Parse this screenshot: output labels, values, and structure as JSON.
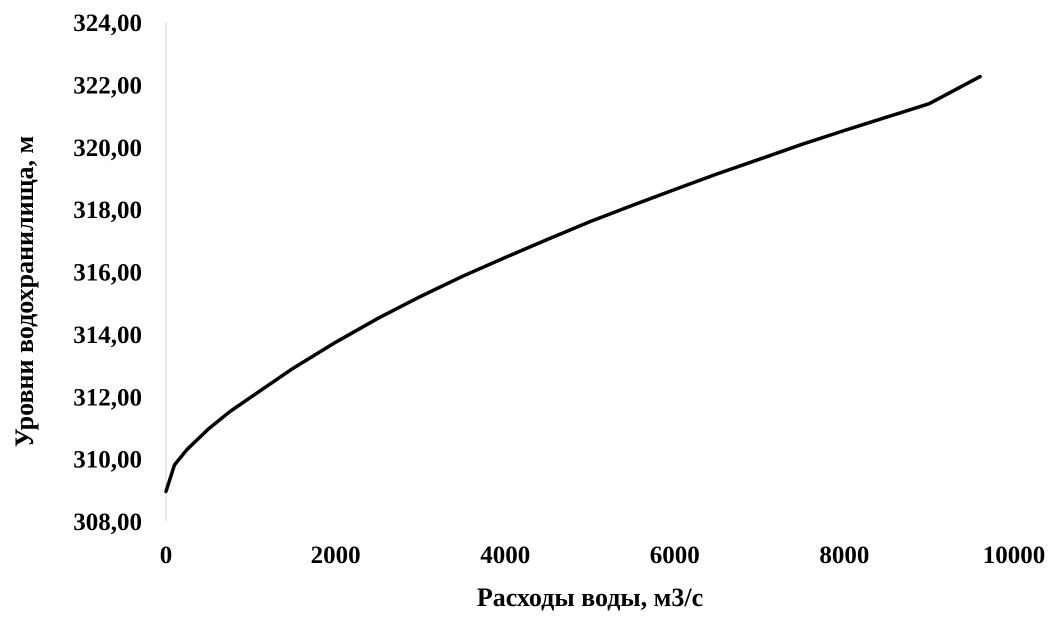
{
  "chart_data": {
    "type": "line",
    "title": "",
    "xlabel": "Расходы воды, м3/с",
    "ylabel": "Уровни водохранилища, м",
    "xlim": [
      0,
      10000
    ],
    "ylim": [
      308,
      324
    ],
    "x_ticks": [
      0,
      2000,
      4000,
      6000,
      8000,
      10000
    ],
    "x_tick_labels": [
      "0",
      "2000",
      "4000",
      "6000",
      "8000",
      "10000"
    ],
    "y_ticks": [
      308,
      310,
      312,
      314,
      316,
      318,
      320,
      322,
      324
    ],
    "y_tick_labels": [
      "308,00",
      "310,00",
      "312,00",
      "314,00",
      "316,00",
      "318,00",
      "320,00",
      "322,00",
      "324,00"
    ],
    "grid": false,
    "legend": "none",
    "series": [
      {
        "color": "#000000",
        "x": [
          0,
          100,
          250,
          500,
          750,
          1000,
          1500,
          2000,
          2500,
          3000,
          3500,
          4000,
          4500,
          5000,
          5500,
          6000,
          6500,
          7000,
          7500,
          8000,
          8500,
          9000,
          9600
        ],
        "y": [
          308.95,
          309.8,
          310.3,
          310.95,
          311.5,
          311.97,
          312.9,
          313.73,
          314.5,
          315.2,
          315.85,
          316.45,
          317.03,
          317.6,
          318.12,
          318.63,
          319.13,
          319.6,
          320.08,
          320.52,
          320.95,
          321.38,
          322.25
        ]
      }
    ]
  }
}
